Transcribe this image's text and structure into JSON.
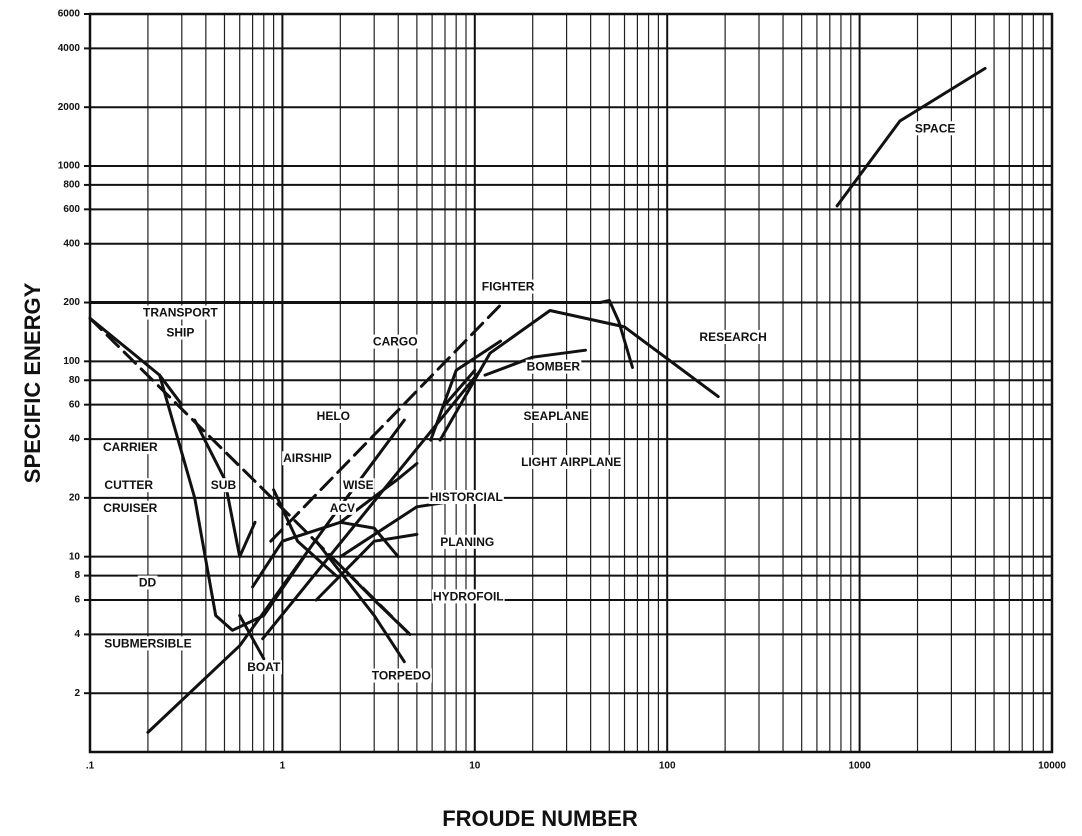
{
  "chart_data": {
    "type": "line",
    "xlabel": "FROUDE NUMBER",
    "ylabel": "SPECIFIC ENERGY",
    "xscale": "log",
    "yscale": "log",
    "grid": true,
    "minor_grid": true,
    "color": "#111111",
    "xlim": [
      0.1,
      10000
    ],
    "ylim": [
      1,
      6000
    ],
    "xticks": [
      {
        "value": 0.1,
        "label": ".1"
      },
      1,
      10,
      100,
      1000,
      10000
    ],
    "yticks": [
      2,
      4,
      6,
      8,
      10,
      20,
      40,
      60,
      80,
      100,
      200,
      400,
      600,
      800,
      1000,
      2000,
      4000,
      6000
    ],
    "series": [
      {
        "x": [
          0.1,
          45,
          50,
          56,
          66
        ],
        "values": [
          200,
          200,
          205,
          160,
          93
        ],
        "dash": false
      },
      {
        "x": [
          0.87,
          14
        ],
        "values": [
          12,
          200
        ],
        "dash": true
      },
      {
        "x": [
          6.6,
          12,
          24.6,
          60,
          184
        ],
        "values": [
          39.5,
          110,
          182,
          150,
          66
        ],
        "dash": false
      },
      {
        "x": [
          764,
          1620,
          4490
        ],
        "values": [
          625,
          1700,
          3160
        ],
        "dash": false
      },
      {
        "x": [
          5.9,
          8,
          13.6
        ],
        "values": [
          39.5,
          90,
          127
        ],
        "dash": false
      },
      {
        "x": [
          11.3,
          20,
          37.6
        ],
        "values": [
          85,
          105,
          114
        ],
        "dash": false
      },
      {
        "x": [
          0.79,
          10.7
        ],
        "values": [
          3.8,
          90
        ],
        "dash": false
      },
      {
        "x": [
          7,
          10
        ],
        "values": [
          60,
          90
        ],
        "dash": false
      },
      {
        "x": [
          0.1,
          4.6
        ],
        "values": [
          166,
          4
        ],
        "dash": true
      },
      {
        "x": [
          0.1,
          0.23,
          0.3
        ],
        "values": [
          166,
          85,
          60
        ],
        "dash": false
      },
      {
        "x": [
          0.2,
          0.6,
          1.78,
          4.3
        ],
        "values": [
          1.26,
          3.5,
          15.5,
          50
        ],
        "dash": false
      },
      {
        "x": [
          0.23,
          0.35,
          0.45,
          0.55,
          0.8,
          1.3
        ],
        "values": [
          85,
          20,
          5,
          4.2,
          5,
          10
        ],
        "dash": false
      },
      {
        "x": [
          0.35,
          0.5,
          0.6,
          0.72
        ],
        "values": [
          50,
          25,
          10,
          15
        ],
        "dash": false
      },
      {
        "x": [
          0.9,
          1.2,
          1.9
        ],
        "values": [
          22,
          12,
          8
        ],
        "dash": false
      },
      {
        "x": [
          0.7,
          1,
          2,
          3,
          4
        ],
        "values": [
          7,
          12,
          15,
          14,
          10
        ],
        "dash": false
      },
      {
        "x": [
          1.5,
          3,
          5
        ],
        "values": [
          6,
          12,
          13
        ],
        "dash": false
      },
      {
        "x": [
          2,
          3,
          4.6
        ],
        "values": [
          9,
          6,
          4
        ],
        "dash": false
      },
      {
        "x": [
          1.5,
          3,
          4.3
        ],
        "values": [
          12,
          5,
          2.9
        ],
        "dash": false
      },
      {
        "x": [
          0.6,
          0.8
        ],
        "values": [
          5,
          3
        ],
        "dash": false
      },
      {
        "x": [
          2,
          4,
          5
        ],
        "values": [
          15,
          25,
          30
        ],
        "dash": false
      },
      {
        "x": [
          2,
          5,
          10
        ],
        "values": [
          10,
          18,
          20
        ],
        "dash": false
      }
    ],
    "annotations": [
      {
        "text": "TRANSPORT",
        "x": 0.295,
        "y": 176
      },
      {
        "text": "SHIP",
        "x": 0.295,
        "y": 139
      },
      {
        "text": "FIGHTER",
        "x": 14.9,
        "y": 239
      },
      {
        "text": "RESEARCH",
        "x": 220,
        "y": 132
      },
      {
        "text": "SPACE",
        "x": 2470,
        "y": 1545
      },
      {
        "text": "CARGO",
        "x": 3.86,
        "y": 125
      },
      {
        "text": "BOMBER",
        "x": 25.6,
        "y": 93
      },
      {
        "text": "SEAPLANE",
        "x": 26.5,
        "y": 52
      },
      {
        "text": "HELO",
        "x": 1.84,
        "y": 52
      },
      {
        "text": "LIGHT AIRPLANE",
        "x": 31.7,
        "y": 30.2
      },
      {
        "text": "CARRIER",
        "x": 0.162,
        "y": 36
      },
      {
        "text": "AIRSHIP",
        "x": 1.35,
        "y": 31.6
      },
      {
        "text": "WISE",
        "x": 2.48,
        "y": 23
      },
      {
        "text": "CUTTER",
        "x": 0.159,
        "y": 23
      },
      {
        "text": "SUB",
        "x": 0.494,
        "y": 23
      },
      {
        "text": "HISTORCIAL",
        "x": 9.03,
        "y": 20
      },
      {
        "text": "CRUISER",
        "x": 0.162,
        "y": 17.6
      },
      {
        "text": "ACV",
        "x": 2.05,
        "y": 17.6
      },
      {
        "text": "PLANING",
        "x": 9.13,
        "y": 11.8
      },
      {
        "text": "DD",
        "x": 0.199,
        "y": 7.3
      },
      {
        "text": "HYDROFOIL",
        "x": 9.25,
        "y": 6.2
      },
      {
        "text": "SUBMERSIBLE",
        "x": 0.2,
        "y": 3.56
      },
      {
        "text": "BOAT",
        "x": 0.8,
        "y": 2.69
      },
      {
        "text": "TORPEDO",
        "x": 4.15,
        "y": 2.44
      }
    ]
  }
}
